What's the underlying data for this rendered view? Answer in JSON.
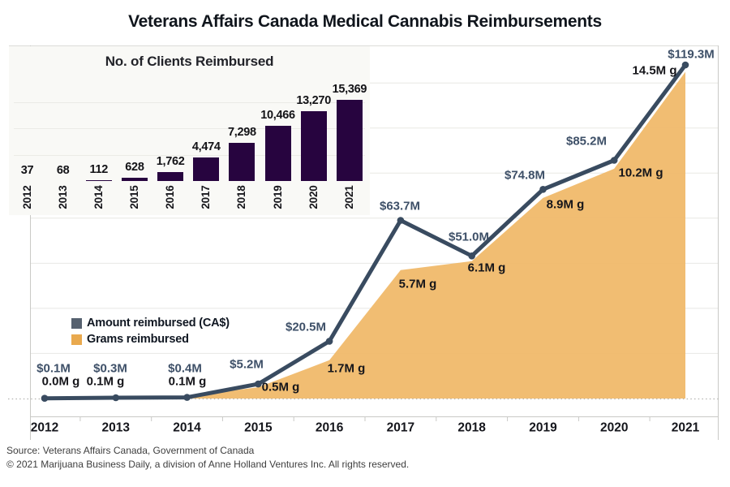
{
  "title": "Veterans Affairs Canada Medical Cannabis Reimbursements",
  "footer": {
    "source": "Source: Veterans Affairs Canada, Government of Canada",
    "copyright": "© 2021 Marijuana Business Daily, a division of Anne Holland Ventures Inc. All rights reserved."
  },
  "colors": {
    "line": "#394b60",
    "area": "#f0b96a",
    "legend_amount_swatch": "#56616f",
    "legend_grams_swatch": "#e9a94e",
    "inset_bars": "#27043f",
    "amount_label_text": "#3e5068"
  },
  "chart_data": [
    {
      "type": "bar",
      "title": "No. of Clients Reimbursed",
      "categories": [
        "2012",
        "2013",
        "2014",
        "2015",
        "2016",
        "2017",
        "2018",
        "2019",
        "2020",
        "2021"
      ],
      "values": [
        37,
        68,
        112,
        628,
        1762,
        4474,
        7298,
        10466,
        13270,
        15369
      ],
      "value_labels": [
        "37",
        "68",
        "112",
        "628",
        "1,762",
        "4,474",
        "7,298",
        "10,466",
        "13,270",
        "15,369"
      ],
      "ylim": [
        0,
        16000
      ],
      "grid": "horizontal every 5000, no y tick labels",
      "legend_position": "none"
    },
    {
      "type": "line+area",
      "categories": [
        "2012",
        "2013",
        "2014",
        "2015",
        "2016",
        "2017",
        "2018",
        "2019",
        "2020",
        "2021"
      ],
      "series": [
        {
          "name": "Amount reimbursed (CA$)",
          "style": "line",
          "unit": "millions CA$",
          "values": [
            0.1,
            0.3,
            0.4,
            5.2,
            20.5,
            63.7,
            51.0,
            74.8,
            85.2,
            119.3
          ],
          "point_labels": [
            "$0.1M",
            "$0.3M",
            "$0.4M",
            "$5.2M",
            "$20.5M",
            "$63.7M",
            "$51.0M",
            "$74.8M",
            "$85.2M",
            "$119.3M"
          ]
        },
        {
          "name": "Grams reimbursed",
          "style": "area",
          "unit": "millions of grams",
          "values": [
            0.0,
            0.1,
            0.1,
            0.5,
            1.7,
            5.7,
            6.1,
            8.9,
            10.2,
            14.5
          ],
          "point_labels": [
            "0.0M g",
            "0.1M g",
            "0.1M g",
            "0.5M g",
            "1.7M g",
            "5.7M g",
            "6.1M g",
            "8.9M g",
            "10.2M g",
            "14.5M g"
          ]
        }
      ],
      "ylim_amount": [
        0,
        125
      ],
      "ylim_grams": [
        0,
        15.2
      ],
      "grid": "horizontal, no y tick labels, dotted zero baseline",
      "legend_position": "middle-left"
    }
  ]
}
